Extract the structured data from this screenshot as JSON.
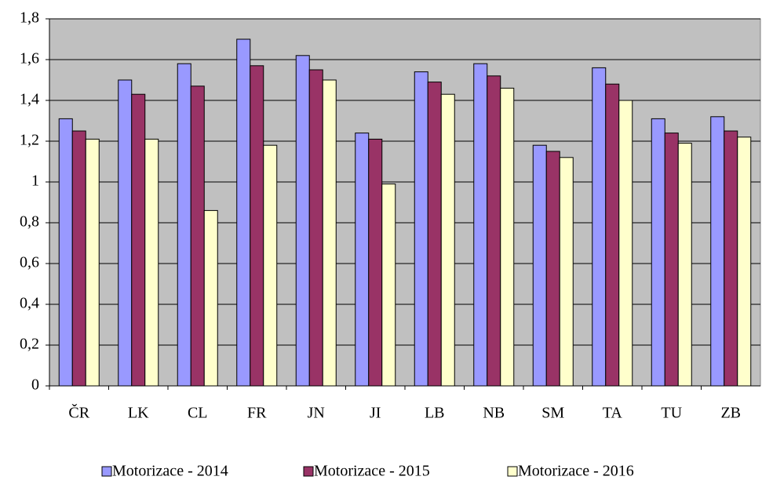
{
  "chart_data": {
    "type": "bar",
    "categories": [
      "ČR",
      "LK",
      "CL",
      "FR",
      "JN",
      "JI",
      "LB",
      "NB",
      "SM",
      "TA",
      "TU",
      "ZB"
    ],
    "series": [
      {
        "name": "Motorizace - 2014",
        "color": "#9999ff",
        "values": [
          1.31,
          1.5,
          1.58,
          1.7,
          1.62,
          1.24,
          1.54,
          1.58,
          1.18,
          1.56,
          1.31,
          1.32
        ]
      },
      {
        "name": "Motorizace - 2015",
        "color": "#993366",
        "values": [
          1.25,
          1.43,
          1.47,
          1.57,
          1.55,
          1.21,
          1.49,
          1.52,
          1.15,
          1.48,
          1.24,
          1.25
        ]
      },
      {
        "name": "Motorizace - 2016",
        "color": "#ffffcc",
        "values": [
          1.21,
          1.21,
          0.86,
          1.18,
          1.5,
          0.99,
          1.43,
          1.46,
          1.12,
          1.4,
          1.19,
          1.22
        ]
      }
    ],
    "ylim": [
      0,
      1.8
    ],
    "yticks": [
      0,
      {
        "value": 0.2,
        "label": "0,2"
      },
      {
        "value": 0.4,
        "label": "0,4"
      },
      {
        "value": 0.6,
        "label": "0,6"
      },
      {
        "value": 0.8,
        "label": "0,8"
      },
      1,
      {
        "value": 1.2,
        "label": "1,2"
      },
      {
        "value": 1.4,
        "label": "1,4"
      },
      {
        "value": 1.6,
        "label": "1,6"
      },
      {
        "value": 1.8,
        "label": "1,8"
      }
    ],
    "grid": true,
    "legend": "bottom"
  }
}
